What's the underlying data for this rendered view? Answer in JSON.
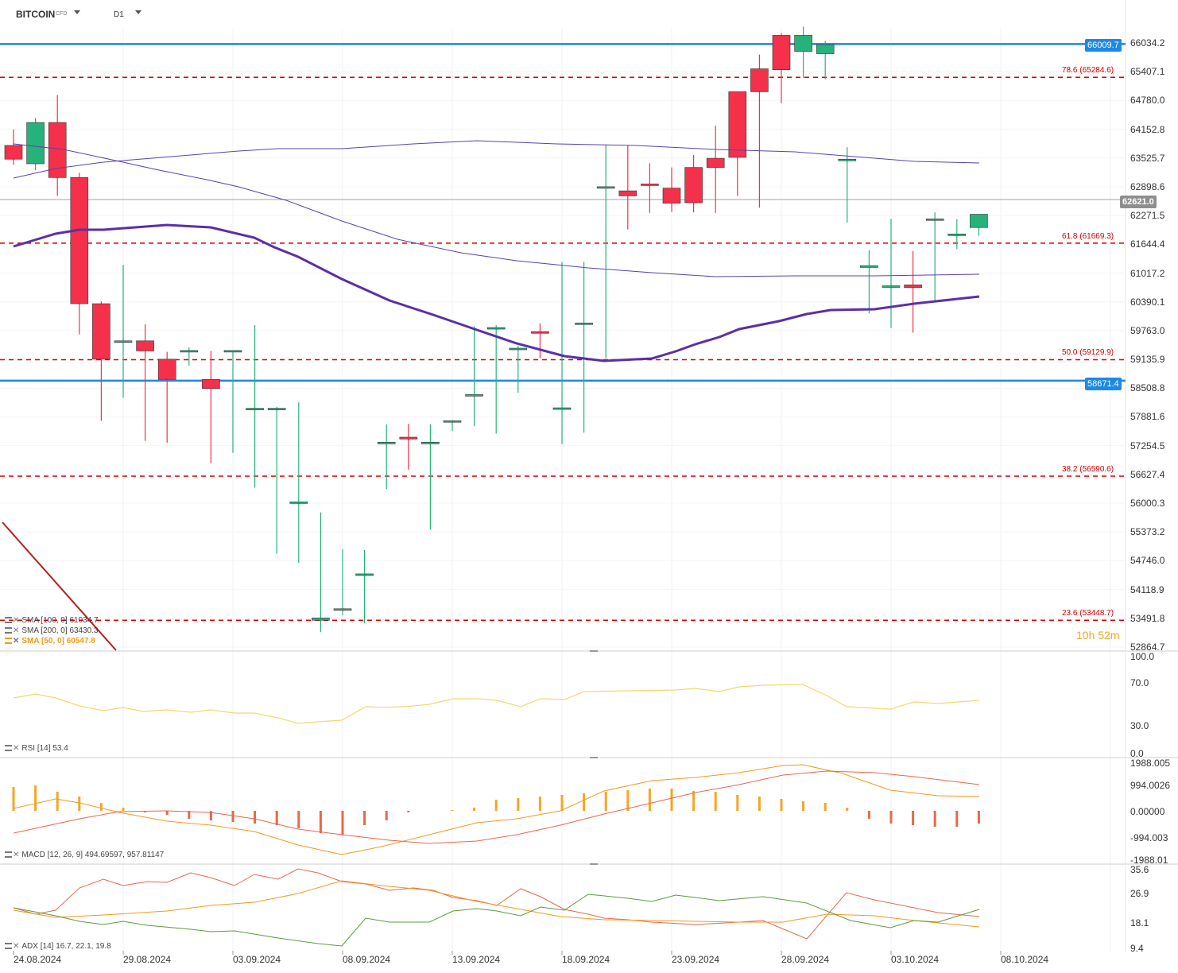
{
  "header": {
    "symbol": "BITCOIN",
    "symbol_sub": "CFD",
    "timeframe": "D1"
  },
  "timer": "10h 52m",
  "price_axis": {
    "ticks": [
      "66034.2",
      "65407.1",
      "64780.0",
      "64152.8",
      "63525.7",
      "62898.6",
      "62271.5",
      "61644.4",
      "61017.2",
      "60390.1",
      "59763.0",
      "59135.9",
      "58508.8",
      "57881.6",
      "57254.5",
      "56627.4",
      "56000.3",
      "55373.2",
      "54746.0",
      "54118.9",
      "53491.8",
      "52864.7"
    ],
    "range": [
      52864.7,
      66034.2
    ]
  },
  "date_axis": [
    "24.08.2024",
    "29.08.2024",
    "03.09.2024",
    "08.09.2024",
    "13.09.2024",
    "18.09.2024",
    "23.09.2024",
    "28.09.2024",
    "03.10.2024",
    "08.10.2024"
  ],
  "tags": {
    "resistance": "66009.7",
    "current": "62621.0",
    "support": "58671.4"
  },
  "fib_labels": [
    "78.6 (65284.6)",
    "61.8 (61669.3)",
    "50.0 (59129.9)",
    "38.2 (56590.6)",
    "23.6 (53448.7)"
  ],
  "legends": {
    "sma100": {
      "label": "SMA [100, 0]",
      "value": "61034.7"
    },
    "sma200": {
      "label": "SMA [200, 0]",
      "value": "63430.3"
    },
    "sma50": {
      "label": "SMA [50, 0]",
      "value": "60547.8"
    },
    "rsi": {
      "label": "RSI [14]",
      "value": "53.4"
    },
    "macd": {
      "label": "MACD [12, 26, 9]",
      "value": "494.69597,   957.81147"
    },
    "adx": {
      "label": "ADX [14]",
      "value": "16.7,   22.1,   19.8"
    }
  },
  "rsi_axis": [
    "100.0",
    "70.0",
    "30.0",
    "0.0"
  ],
  "macd_axis": [
    "1988.005",
    "994.0026",
    "0.00000",
    "-994.003",
    "-1988.01"
  ],
  "adx_axis": [
    "35.6",
    "26.9",
    "18.1",
    "9.4"
  ],
  "colors": {
    "up": "#26b27a",
    "down": "#f5304a",
    "blue_level": "#1e88e5",
    "fib": "#d60000",
    "sma50": "#5b2fa8",
    "sma_thin": "#5b3fb5",
    "rsi": "#f5d76e"
  },
  "chart_data": {
    "type": "candlestick",
    "title": "",
    "dates": [
      "23.08.2024",
      "24.08.2024",
      "25.08.2024",
      "26.08.2024",
      "27.08.2024",
      "28.08.2024",
      "29.08.2024",
      "30.08.2024",
      "31.08.2024",
      "01.09.2024",
      "02.09.2024",
      "03.09.2024",
      "04.09.2024",
      "05.09.2024",
      "06.09.2024",
      "07.09.2024",
      "08.09.2024",
      "09.09.2024",
      "10.09.2024",
      "11.09.2024",
      "12.09.2024",
      "13.09.2024",
      "14.09.2024",
      "15.09.2024",
      "16.09.2024",
      "17.09.2024",
      "18.09.2024",
      "19.09.2024",
      "20.09.2024",
      "21.09.2024",
      "22.09.2024",
      "23.09.2024",
      "24.09.2024",
      "25.09.2024",
      "26.09.2024",
      "27.09.2024",
      "28.09.2024",
      "29.09.2024",
      "30.09.2024",
      "01.10.2024",
      "02.10.2024",
      "03.10.2024",
      "04.10.2024",
      "05.10.2024",
      "06.10.2024"
    ],
    "open": [
      63800,
      63400,
      64300,
      63100,
      60350,
      59540,
      59540,
      59140,
      59320,
      58700,
      59300,
      58070,
      58070,
      56030,
      53450,
      53700,
      54460,
      57330,
      57440,
      57330,
      57770,
      58370,
      59830,
      59380,
      59740,
      58080,
      59920,
      62900,
      62810,
      62960,
      62870,
      63320,
      63520,
      64970,
      65470,
      66200,
      65850,
      65800,
      63500,
      61140,
      60740,
      60760,
      62200,
      61870,
      62010
    ],
    "close": [
      63500,
      64300,
      63100,
      60350,
      59140,
      59540,
      59320,
      58700,
      59330,
      58500,
      59330,
      58070,
      58070,
      56030,
      53500,
      53700,
      54460,
      57330,
      57400,
      57330,
      57800,
      58370,
      59830,
      59380,
      59730,
      58080,
      59930,
      62900,
      62700,
      62950,
      62540,
      62550,
      63320,
      63540,
      64970,
      65450,
      66200,
      66000,
      63500,
      61180,
      60740,
      60700,
      62200,
      61870,
      62300
    ]
  }
}
